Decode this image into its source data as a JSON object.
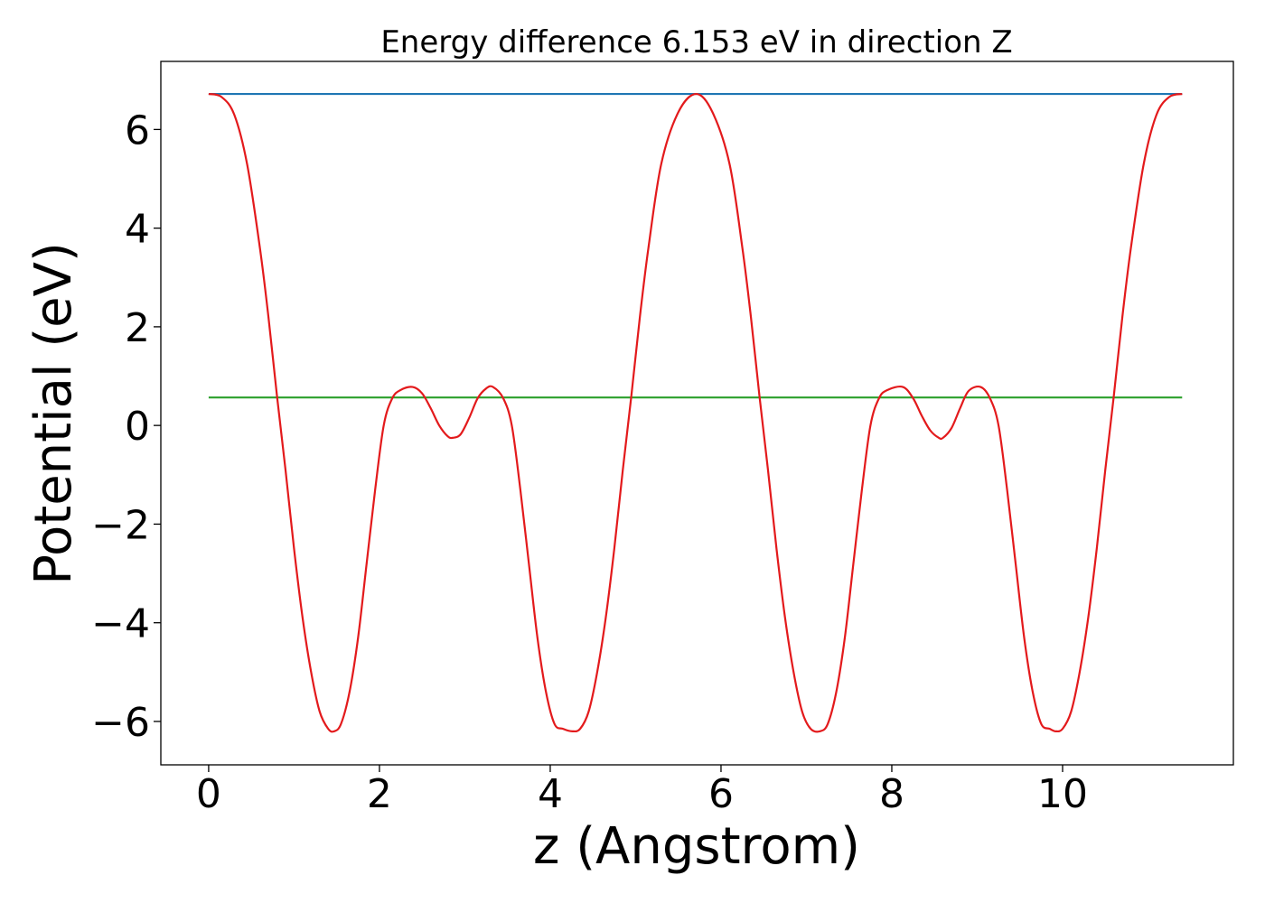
{
  "chart_data": {
    "type": "line",
    "title": "Energy difference 6.153 eV in direction Z",
    "xlabel": "z (Angstrom)",
    "ylabel": "Potential (eV)",
    "xlim": [
      -0.56,
      12.0
    ],
    "ylim": [
      -6.88,
      7.38
    ],
    "xticks": [
      0,
      2,
      4,
      6,
      8,
      10
    ],
    "xtick_labels": [
      "0",
      "2",
      "4",
      "6",
      "8",
      "10"
    ],
    "yticks": [
      -6,
      -4,
      -2,
      0,
      2,
      4,
      6
    ],
    "ytick_labels": [
      "−6",
      "−4",
      "−2",
      "0",
      "2",
      "4",
      "6"
    ],
    "grid": false,
    "legend": "none",
    "series": [
      {
        "kind": "curve",
        "color": "#e31a1c",
        "x": [
          0,
          0.15,
          0.3,
          0.45,
          0.6,
          0.7,
          0.8,
          0.9,
          1.0,
          1.1,
          1.2,
          1.3,
          1.4,
          1.47,
          1.55,
          1.65,
          1.75,
          1.85,
          1.95,
          2.05,
          2.15,
          2.25,
          2.39,
          2.5,
          2.6,
          2.7,
          2.8,
          2.86,
          2.95,
          3.05,
          3.15,
          3.25,
          3.33,
          3.45,
          3.55,
          3.65,
          3.75,
          3.85,
          3.95,
          4.05,
          4.15,
          4.26,
          4.35,
          4.45,
          4.55,
          4.65,
          4.75,
          4.85,
          4.95,
          5.05,
          5.15,
          5.3,
          5.5,
          5.71,
          5.9,
          6.1,
          6.25,
          6.35,
          6.45,
          6.55,
          6.65,
          6.75,
          6.85,
          6.95,
          7.05,
          7.16,
          7.25,
          7.35,
          7.45,
          7.55,
          7.65,
          7.75,
          7.85,
          7.95,
          8.13,
          8.25,
          8.35,
          8.45,
          8.55,
          8.6,
          8.7,
          8.8,
          8.9,
          9.04,
          9.15,
          9.25,
          9.35,
          9.45,
          9.55,
          9.65,
          9.75,
          9.85,
          9.92,
          10.0,
          10.1,
          10.2,
          10.3,
          10.4,
          10.5,
          10.6,
          10.7,
          10.8,
          10.95,
          11.1,
          11.25,
          11.4
        ],
        "y": [
          6.72,
          6.66,
          6.3,
          5.3,
          3.6,
          2.2,
          0.6,
          -0.9,
          -2.5,
          -3.9,
          -5.0,
          -5.8,
          -6.15,
          -6.2,
          -6.05,
          -5.4,
          -4.3,
          -2.8,
          -1.3,
          0.0,
          0.55,
          0.72,
          0.78,
          0.65,
          0.35,
          0.0,
          -0.22,
          -0.25,
          -0.18,
          0.15,
          0.55,
          0.75,
          0.78,
          0.55,
          0.0,
          -1.3,
          -2.8,
          -4.3,
          -5.4,
          -6.05,
          -6.15,
          -6.2,
          -6.15,
          -5.8,
          -5.0,
          -3.9,
          -2.5,
          -0.9,
          0.6,
          2.2,
          3.6,
          5.3,
          6.35,
          6.72,
          6.35,
          5.3,
          3.6,
          2.2,
          0.6,
          -0.9,
          -2.5,
          -3.9,
          -5.0,
          -5.8,
          -6.15,
          -6.2,
          -6.05,
          -5.4,
          -4.3,
          -2.8,
          -1.3,
          0.0,
          0.55,
          0.72,
          0.78,
          0.55,
          0.2,
          -0.1,
          -0.25,
          -0.25,
          -0.05,
          0.35,
          0.7,
          0.78,
          0.55,
          0.0,
          -1.3,
          -2.8,
          -4.3,
          -5.4,
          -6.05,
          -6.15,
          -6.2,
          -6.15,
          -5.8,
          -5.0,
          -3.9,
          -2.5,
          -0.9,
          0.6,
          2.2,
          3.6,
          5.3,
          6.3,
          6.66,
          6.72
        ]
      },
      {
        "kind": "hline",
        "color": "#1f77b4",
        "x": [
          0,
          11.4
        ],
        "y": [
          6.72,
          6.72
        ]
      },
      {
        "kind": "hline",
        "color": "#2ca02c",
        "x": [
          0,
          11.4
        ],
        "y": [
          0.567,
          0.567
        ]
      }
    ]
  }
}
